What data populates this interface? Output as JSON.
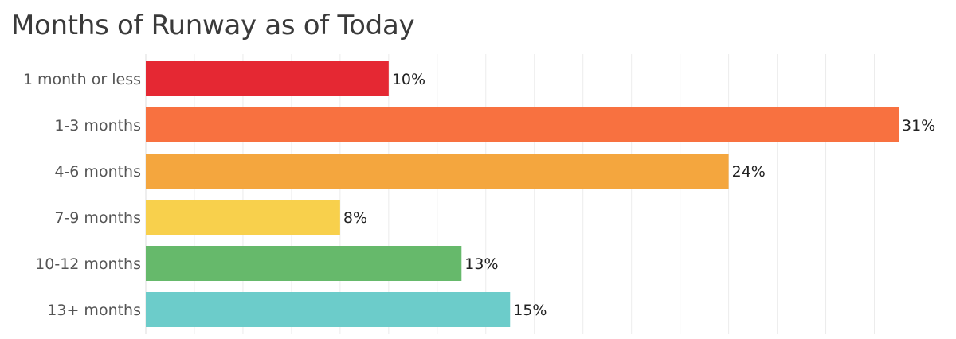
{
  "chart_data": {
    "type": "bar",
    "orientation": "horizontal",
    "title": "Months of Runway as of Today",
    "xlabel": "",
    "ylabel": "",
    "categories": [
      "1 month or less",
      "1-3 months",
      "4-6 months",
      "7-9 months",
      "10-12 months",
      "13+ months"
    ],
    "values": [
      10,
      31,
      24,
      8,
      13,
      15
    ],
    "value_labels": [
      "10%",
      "31%",
      "24%",
      "8%",
      "13%",
      "15%"
    ],
    "value_suffix": "%",
    "colors": [
      "#e52833",
      "#f87140",
      "#f4a63e",
      "#f8d04c",
      "#66b96b",
      "#6cccca"
    ],
    "xlim": [
      0,
      32.5
    ],
    "grid": true,
    "legend": "none"
  }
}
